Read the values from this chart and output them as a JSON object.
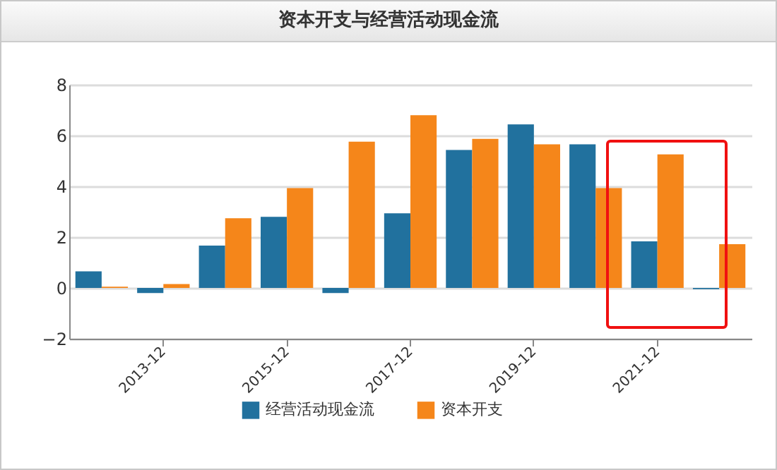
{
  "chart_data": {
    "type": "bar",
    "title": "资本开支与经营活动现金流",
    "categories": [
      null,
      "2013-12",
      null,
      "2015-12",
      null,
      "2017-12",
      null,
      "2019-12",
      null,
      "2021-12",
      null
    ],
    "series": [
      {
        "name": "经营活动现金流",
        "color": "#21719e",
        "values": [
          0.65,
          -0.2,
          1.67,
          2.8,
          -0.2,
          2.94,
          5.43,
          6.44,
          5.65,
          1.83,
          -0.05
        ]
      },
      {
        "name": "资本开支",
        "color": "#f5861a",
        "values": [
          0.05,
          0.15,
          2.74,
          3.93,
          5.76,
          6.8,
          5.87,
          5.65,
          3.93,
          5.26,
          1.72
        ]
      }
    ],
    "ylim": [
      -2,
      8
    ],
    "yticks": [
      -2,
      0,
      2,
      4,
      6,
      8
    ],
    "grid": "y",
    "legend": "bottom"
  }
}
